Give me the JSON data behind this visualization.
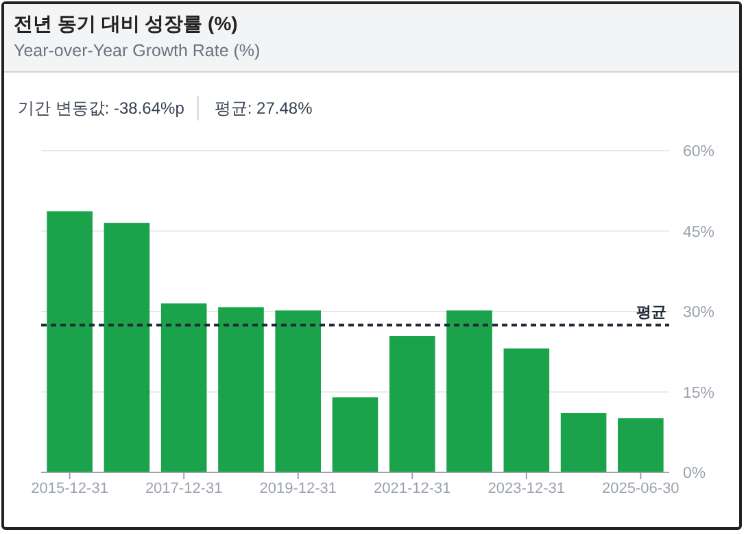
{
  "chart_data": {
    "type": "bar",
    "title": "전년 동기 대비 성장률 (%)",
    "subtitle": "Year-over-Year Growth Rate (%)",
    "annotations": [
      "기간 변동값: -38.64%p",
      "평균: 27.48%"
    ],
    "categories": [
      "2015-12-31",
      null,
      "2017-12-31",
      null,
      "2019-12-31",
      null,
      "2021-12-31",
      null,
      "2023-12-31",
      null,
      "2025-06-30"
    ],
    "values": [
      48.7,
      46.5,
      31.5,
      30.8,
      30.2,
      14.0,
      25.4,
      30.2,
      23.1,
      11.1,
      10.1
    ],
    "color": "#1aa34a",
    "ylim": [
      0,
      60
    ],
    "yticks": [
      {
        "value": 0,
        "label": "0%"
      },
      {
        "value": 15,
        "label": "15%"
      },
      {
        "value": 30,
        "label": "30%"
      },
      {
        "value": 45,
        "label": "45%"
      },
      {
        "value": 60,
        "label": "60%"
      }
    ],
    "grid": "y",
    "ref_lines": [
      {
        "axis": "y",
        "value": 27.48,
        "label": "평균",
        "color": "#1f2937",
        "line_style": "dashed"
      }
    ]
  }
}
